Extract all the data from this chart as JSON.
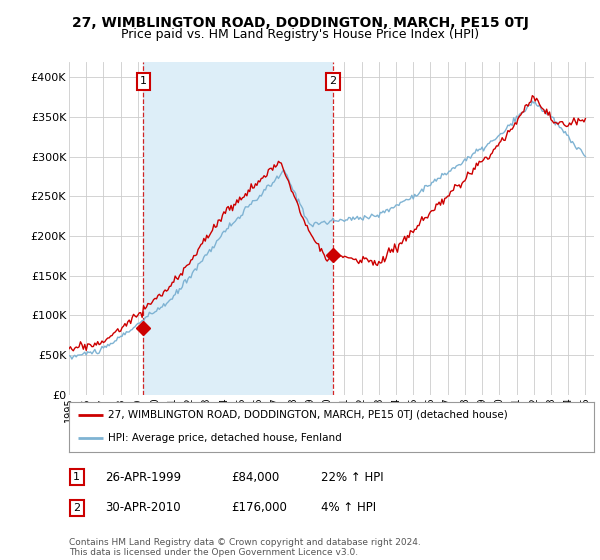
{
  "title": "27, WIMBLINGTON ROAD, DODDINGTON, MARCH, PE15 0TJ",
  "subtitle": "Price paid vs. HM Land Registry's House Price Index (HPI)",
  "xlim_start": 1995.0,
  "xlim_end": 2025.5,
  "ylim": [
    0,
    420000
  ],
  "yticks": [
    0,
    50000,
    100000,
    150000,
    200000,
    250000,
    300000,
    350000,
    400000
  ],
  "ytick_labels": [
    "£0",
    "£50K",
    "£100K",
    "£150K",
    "£200K",
    "£250K",
    "£300K",
    "£350K",
    "£400K"
  ],
  "sale1_x": 1999.32,
  "sale1_y": 84000,
  "sale1_label": "1",
  "sale2_x": 2010.33,
  "sale2_y": 176000,
  "sale2_label": "2",
  "red_color": "#cc0000",
  "blue_color": "#7fb3d3",
  "shade_color": "#ddeef8",
  "marker_box_color": "#cc0000",
  "legend_line1": "27, WIMBLINGTON ROAD, DODDINGTON, MARCH, PE15 0TJ (detached house)",
  "legend_line2": "HPI: Average price, detached house, Fenland",
  "table_rows": [
    [
      "1",
      "26-APR-1999",
      "£84,000",
      "22% ↑ HPI"
    ],
    [
      "2",
      "30-APR-2010",
      "£176,000",
      "4% ↑ HPI"
    ]
  ],
  "footnote": "Contains HM Land Registry data © Crown copyright and database right 2024.\nThis data is licensed under the Open Government Licence v3.0.",
  "bg_color": "#ffffff",
  "grid_color": "#cccccc",
  "title_fontsize": 10,
  "subtitle_fontsize": 9
}
